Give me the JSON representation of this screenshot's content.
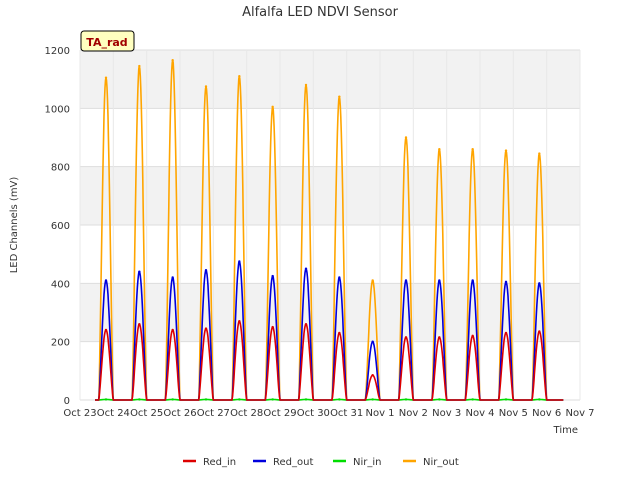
{
  "chart_data": {
    "type": "line",
    "title": "Alfalfa LED NDVI Sensor",
    "xlabel": "Time",
    "ylabel": "LED Channels (mV)",
    "badge": "TA_rad",
    "ylim": [
      0,
      1200
    ],
    "yticks": [
      0,
      200,
      400,
      600,
      800,
      1000,
      1200
    ],
    "xlim": [
      0,
      15
    ],
    "xticks": [
      0,
      1,
      2,
      3,
      4,
      5,
      6,
      7,
      8,
      9,
      10,
      11,
      12,
      13,
      14,
      15
    ],
    "xticklabels": [
      "Oct 23",
      "Oct 24",
      "Oct 25",
      "Oct 26",
      "Oct 27",
      "Oct 28",
      "Oct 29",
      "Oct 30",
      "Oct 31",
      "Nov 1",
      "Nov 2",
      "Nov 3",
      "Nov 4",
      "Nov 5",
      "Nov 6",
      "Nov 7"
    ],
    "grid": true,
    "legend_position": "bottom",
    "day_peak_times": [
      0.78,
      1.78,
      2.78,
      3.78,
      4.78,
      5.78,
      6.78,
      7.78,
      8.78,
      9.78,
      10.78,
      11.78,
      12.78,
      13.78
    ],
    "series": [
      {
        "name": "Red_in",
        "color": "#dd0000",
        "peaks": [
          240,
          260,
          240,
          245,
          270,
          250,
          260,
          230,
          85,
          215,
          215,
          220,
          230,
          235
        ]
      },
      {
        "name": "Red_out",
        "color": "#0000dd",
        "peaks": [
          410,
          440,
          420,
          445,
          475,
          425,
          450,
          420,
          200,
          410,
          410,
          410,
          405,
          400
        ]
      },
      {
        "name": "Nir_in",
        "color": "#00dd00",
        "peaks": [
          2,
          2,
          2,
          2,
          2,
          2,
          2,
          2,
          2,
          2,
          2,
          2,
          2,
          2
        ]
      },
      {
        "name": "Nir_out",
        "color": "#ffa500",
        "peaks": [
          1105,
          1145,
          1165,
          1075,
          1110,
          1005,
          1080,
          1040,
          410,
          900,
          860,
          860,
          855,
          845
        ]
      }
    ]
  }
}
